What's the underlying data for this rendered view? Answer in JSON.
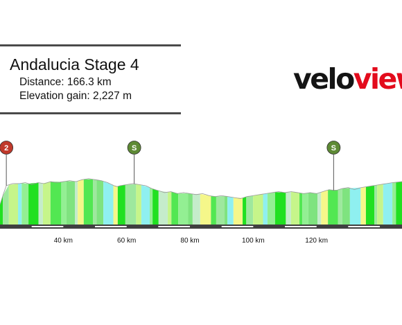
{
  "stage": {
    "title": "Andalucia Stage 4",
    "distance": "Distance: 166.3 km",
    "elevation_gain": "Elevation gain: 2,227 m"
  },
  "logo": {
    "part1": "velo",
    "part2": "view"
  },
  "colors": {
    "logo_dark": "#141414",
    "logo_red": "#e30b1c",
    "road_bar": "#404040",
    "kom_marker": "#c0392b",
    "sprint_marker": "#5e8a35",
    "segment_palette": [
      "#21e021",
      "#7fe37f",
      "#c6f58a",
      "#f5f78a",
      "#93ef93",
      "#9ee89e",
      "#c5eccb",
      "#8ff0f0",
      "#52e752"
    ]
  },
  "chart_data": {
    "type": "area",
    "title": "Andalucia Stage 4",
    "xlabel": "",
    "ylabel": "",
    "x_unit": "km",
    "xlim": [
      20,
      147
    ],
    "x_ticks": [
      {
        "value": 40,
        "label": "40 km"
      },
      {
        "value": 60,
        "label": "60 km"
      },
      {
        "value": 80,
        "label": "80 km"
      },
      {
        "value": 100,
        "label": "100 km"
      },
      {
        "value": 120,
        "label": "120 km"
      }
    ],
    "markers": [
      {
        "km": 22,
        "type": "kom",
        "label": "2"
      },
      {
        "km": 62.4,
        "type": "sprint",
        "label": "S"
      },
      {
        "km": 125.4,
        "type": "sprint",
        "label": "S"
      }
    ],
    "profile_points": [
      [
        20,
        40
      ],
      [
        21,
        60
      ],
      [
        22,
        78
      ],
      [
        24,
        82
      ],
      [
        26,
        82
      ],
      [
        28,
        84
      ],
      [
        30,
        80
      ],
      [
        32,
        84
      ],
      [
        34,
        82
      ],
      [
        36,
        86
      ],
      [
        38,
        84
      ],
      [
        40,
        86
      ],
      [
        42,
        88
      ],
      [
        44,
        86
      ],
      [
        46,
        90
      ],
      [
        48,
        92
      ],
      [
        50,
        90
      ],
      [
        52,
        88
      ],
      [
        54,
        84
      ],
      [
        56,
        78
      ],
      [
        57,
        76
      ],
      [
        58,
        78
      ],
      [
        60,
        80
      ],
      [
        62,
        82
      ],
      [
        64,
        80
      ],
      [
        66,
        78
      ],
      [
        68,
        72
      ],
      [
        70,
        68
      ],
      [
        72,
        64
      ],
      [
        74,
        66
      ],
      [
        76,
        62
      ],
      [
        78,
        64
      ],
      [
        80,
        62
      ],
      [
        82,
        60
      ],
      [
        84,
        62
      ],
      [
        86,
        58
      ],
      [
        88,
        56
      ],
      [
        90,
        58
      ],
      [
        92,
        56
      ],
      [
        94,
        54
      ],
      [
        96,
        52
      ],
      [
        98,
        56
      ],
      [
        100,
        58
      ],
      [
        102,
        60
      ],
      [
        104,
        62
      ],
      [
        106,
        64
      ],
      [
        108,
        66
      ],
      [
        110,
        64
      ],
      [
        112,
        66
      ],
      [
        114,
        64
      ],
      [
        116,
        62
      ],
      [
        118,
        64
      ],
      [
        120,
        62
      ],
      [
        122,
        66
      ],
      [
        124,
        70
      ],
      [
        126,
        68
      ],
      [
        128,
        72
      ],
      [
        130,
        74
      ],
      [
        132,
        70
      ],
      [
        134,
        74
      ],
      [
        136,
        76
      ],
      [
        138,
        78
      ],
      [
        140,
        80
      ],
      [
        142,
        82
      ],
      [
        144,
        84
      ],
      [
        147,
        86
      ]
    ]
  }
}
